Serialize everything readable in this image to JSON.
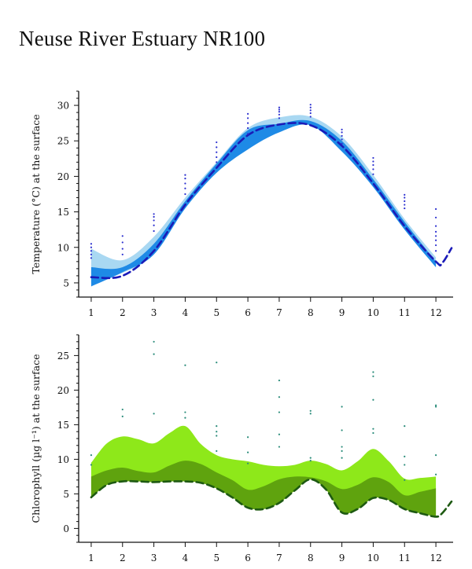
{
  "title": "Neuse River Estuary NR100",
  "chart_data": [
    {
      "type": "area",
      "id": "temperature",
      "ylabel": "Temperature (°C) at the surface",
      "xlim": [
        0.6,
        12.55
      ],
      "ylim": [
        3,
        32
      ],
      "xticks": [
        1,
        2,
        3,
        4,
        5,
        6,
        7,
        8,
        9,
        10,
        11,
        12
      ],
      "yticks": [
        5,
        10,
        15,
        20,
        25,
        30
      ],
      "colors": {
        "outer_band": "#a9d8f2",
        "inner_band": "#1e8ae6",
        "median_line": "#1a1ab8",
        "points": "#2b2fcf"
      },
      "series": [
        {
          "role": "outer_band",
          "x": [
            1,
            2,
            3,
            4,
            5,
            6,
            7,
            8,
            9,
            10,
            11,
            12
          ],
          "upper": [
            9.8,
            8.2,
            11.5,
            17.0,
            22.0,
            26.8,
            28.3,
            28.4,
            25.6,
            20.2,
            14.0,
            8.6
          ],
          "lower": [
            5.0,
            6.4,
            9.0,
            15.5,
            20.5,
            23.8,
            26.2,
            27.2,
            23.5,
            18.5,
            12.5,
            7.2
          ]
        },
        {
          "role": "inner_band",
          "x": [
            1,
            2,
            3,
            4,
            5,
            6,
            7,
            8,
            9,
            10,
            11,
            12
          ],
          "upper": [
            7.2,
            7.2,
            10.5,
            16.5,
            21.8,
            26.5,
            27.4,
            27.8,
            25.0,
            19.6,
            13.6,
            8.0
          ],
          "lower": [
            4.5,
            6.5,
            9.0,
            15.5,
            20.5,
            23.8,
            26.2,
            27.2,
            23.5,
            18.5,
            12.5,
            7.2
          ]
        },
        {
          "role": "median_line",
          "x": [
            1,
            2,
            3,
            4,
            5,
            6,
            7,
            8,
            9,
            10,
            11,
            12,
            12.2,
            12.5
          ],
          "y": [
            5.8,
            6.0,
            9.5,
            16.0,
            21.2,
            25.8,
            27.3,
            27.2,
            24.3,
            19.0,
            13.0,
            8.0,
            7.8,
            9.9
          ]
        }
      ],
      "points": [
        {
          "x": 1,
          "y": [
            8.5,
            9.0,
            9.5,
            10.0,
            10.5
          ]
        },
        {
          "x": 2,
          "y": [
            9.0,
            9.8,
            10.7,
            11.6
          ]
        },
        {
          "x": 3,
          "y": [
            12.3,
            13.1,
            13.8,
            14.3,
            14.7
          ]
        },
        {
          "x": 4,
          "y": [
            17.5,
            18.3,
            19.0,
            19.7,
            20.2
          ]
        },
        {
          "x": 5,
          "y": [
            22.0,
            22.7,
            23.4,
            24.1,
            24.8
          ]
        },
        {
          "x": 6,
          "y": [
            26.0,
            26.8,
            27.5,
            28.2,
            28.8
          ]
        },
        {
          "x": 7,
          "y": [
            28.2,
            28.7,
            29.1,
            29.4,
            29.7
          ]
        },
        {
          "x": 8,
          "y": [
            28.4,
            28.9,
            29.3,
            29.7,
            30.1
          ]
        },
        {
          "x": 9,
          "y": [
            24.6,
            25.2,
            25.7,
            26.2,
            26.6
          ]
        },
        {
          "x": 10,
          "y": [
            20.3,
            21.0,
            21.6,
            22.1,
            22.6
          ]
        },
        {
          "x": 11,
          "y": [
            15.5,
            16.0,
            16.5,
            17.0,
            17.4
          ]
        },
        {
          "x": 12,
          "y": [
            9.5,
            10.3,
            11.0,
            11.6,
            12.2,
            13.0,
            14.2,
            15.4
          ]
        }
      ]
    },
    {
      "type": "area",
      "id": "chlorophyll",
      "ylabel": "Chlorophyll (µg l⁻¹) at the surface",
      "xlim": [
        0.6,
        12.55
      ],
      "ylim": [
        -2,
        28
      ],
      "xticks": [
        1,
        2,
        3,
        4,
        5,
        6,
        7,
        8,
        9,
        10,
        11,
        12
      ],
      "yticks": [
        0,
        5,
        10,
        15,
        20,
        25
      ],
      "colors": {
        "outer_band": "#8ee81a",
        "inner_band": "#5fa30e",
        "median_line": "#1e5a12",
        "points": "#2a8c7a"
      },
      "series": [
        {
          "role": "outer_band",
          "x": [
            1,
            1.5,
            2,
            2.5,
            3,
            3.5,
            4,
            4.5,
            5,
            5.5,
            6,
            6.5,
            7,
            7.5,
            8,
            8.5,
            9,
            9.5,
            10,
            10.5,
            11,
            11.5,
            12
          ],
          "upper": [
            9.5,
            12.3,
            13.3,
            12.9,
            12.3,
            13.8,
            14.8,
            12.2,
            10.6,
            10.0,
            9.7,
            9.2,
            9.0,
            9.2,
            9.8,
            9.3,
            8.4,
            9.7,
            11.5,
            9.7,
            7.2,
            7.3,
            7.5
          ],
          "lower": [
            4.5,
            6.3,
            6.8,
            6.8,
            6.7,
            6.8,
            6.8,
            6.6,
            5.8,
            4.5,
            3.0,
            2.8,
            3.7,
            5.5,
            7.1,
            5.6,
            2.3,
            2.8,
            4.4,
            4.1,
            2.8,
            2.2,
            1.7
          ]
        },
        {
          "role": "inner_band",
          "x": [
            1,
            1.5,
            2,
            2.5,
            3,
            3.5,
            4,
            4.5,
            5,
            5.5,
            6,
            6.5,
            7,
            7.5,
            8,
            8.5,
            9,
            9.5,
            10,
            10.5,
            11,
            11.5,
            12
          ],
          "upper": [
            7.5,
            8.4,
            8.8,
            8.3,
            8.1,
            9.1,
            9.8,
            9.3,
            8.1,
            7.0,
            5.6,
            6.1,
            7.1,
            7.5,
            7.4,
            6.8,
            5.7,
            6.3,
            7.4,
            6.7,
            4.8,
            5.3,
            5.8
          ],
          "lower": [
            4.5,
            6.3,
            6.8,
            6.8,
            6.7,
            6.8,
            6.8,
            6.6,
            5.8,
            4.5,
            3.0,
            2.8,
            3.7,
            5.5,
            7.1,
            5.6,
            2.3,
            2.8,
            4.4,
            4.1,
            2.8,
            2.2,
            1.7
          ]
        },
        {
          "role": "median_line",
          "x": [
            1,
            1.5,
            2,
            2.5,
            3,
            3.5,
            4,
            4.5,
            5,
            5.5,
            6,
            6.5,
            7,
            7.5,
            8,
            8.5,
            9,
            9.5,
            10,
            10.5,
            11,
            11.5,
            12,
            12.2,
            12.5
          ],
          "y": [
            4.5,
            6.3,
            6.8,
            6.8,
            6.7,
            6.8,
            6.8,
            6.6,
            5.8,
            4.5,
            3.0,
            2.8,
            3.7,
            5.5,
            7.1,
            5.6,
            2.3,
            2.8,
            4.4,
            4.1,
            2.8,
            2.2,
            1.7,
            2.2,
            3.9
          ]
        }
      ],
      "points": [
        {
          "x": 1,
          "y": [
            9.2,
            10.6
          ]
        },
        {
          "x": 2,
          "y": [
            16.2,
            17.2
          ]
        },
        {
          "x": 3,
          "y": [
            16.6,
            25.2,
            27.0
          ]
        },
        {
          "x": 4,
          "y": [
            16.0,
            16.8,
            23.6
          ]
        },
        {
          "x": 5,
          "y": [
            11.2,
            13.4,
            14.0,
            14.8,
            24.0
          ]
        },
        {
          "x": 6,
          "y": [
            9.4,
            11.0,
            13.2
          ]
        },
        {
          "x": 7,
          "y": [
            11.8,
            13.6,
            16.8,
            19.0,
            21.4
          ]
        },
        {
          "x": 8,
          "y": [
            9.8,
            10.2,
            16.6,
            17.0
          ]
        },
        {
          "x": 9,
          "y": [
            10.2,
            11.2,
            11.8,
            14.2,
            17.6
          ]
        },
        {
          "x": 10,
          "y": [
            13.8,
            14.4,
            18.6,
            22.0,
            22.6
          ]
        },
        {
          "x": 11,
          "y": [
            7.0,
            9.2,
            10.4,
            14.8
          ]
        },
        {
          "x": 12,
          "y": [
            7.8,
            10.6,
            17.6,
            17.8
          ]
        }
      ]
    }
  ]
}
